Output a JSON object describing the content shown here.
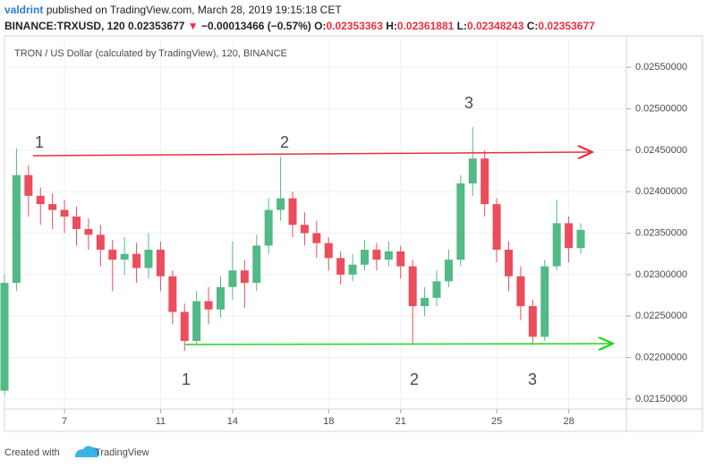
{
  "header": {
    "user": "valdrint",
    "published": "published on TradingView.com, March 28, 2019 19:15:18 CET",
    "symbol": "BINANCE:TRXUSD, 120",
    "last": "0.02353677",
    "arrow": "▼",
    "change": "−0.00013466 (−0.57%)",
    "o_label": "O:",
    "o": "0.02353363",
    "h_label": "H:",
    "h": "0.02361881",
    "l_label": "L:",
    "l": "0.02348243",
    "c_label": "C:",
    "c": "0.02353677"
  },
  "chart_data": {
    "type": "candlestick",
    "title": "TRON / US Dollar (calculated by TradingView), 120, BINANCE",
    "up_color": "#53b987",
    "down_color": "#eb4d5c",
    "grid": true,
    "xlim": [
      4.5,
      30.4
    ],
    "xticks": [
      7,
      11,
      14,
      18,
      21,
      25,
      28
    ],
    "ylim": [
      0.02138,
      0.02588
    ],
    "yticks": [
      {
        "value": 0.0215,
        "label": "0.02150000"
      },
      {
        "value": 0.022,
        "label": "0.02200000"
      },
      {
        "value": 0.0225,
        "label": "0.02250000"
      },
      {
        "value": 0.023,
        "label": "0.02300000"
      },
      {
        "value": 0.0235,
        "label": "0.02350000"
      },
      {
        "value": 0.024,
        "label": "0.02400000"
      },
      {
        "value": 0.0245,
        "label": "0.02450000"
      },
      {
        "value": 0.025,
        "label": "0.02500000"
      },
      {
        "value": 0.0255,
        "label": "0.02550000"
      }
    ],
    "x": [
      4.5,
      5,
      5.5,
      6,
      6.5,
      7,
      7.5,
      8,
      8.5,
      9,
      9.5,
      10,
      10.5,
      11,
      11.5,
      12,
      12.5,
      13,
      13.5,
      14,
      14.5,
      15,
      15.5,
      16,
      16.5,
      17,
      17.5,
      18,
      18.5,
      19,
      19.5,
      20,
      20.5,
      21,
      21.5,
      22,
      22.5,
      23,
      23.5,
      24,
      24.5,
      25,
      25.5,
      26,
      26.5,
      27,
      27.5,
      28,
      28.5
    ],
    "open": [
      0.0216,
      0.0229,
      0.0242,
      0.02395,
      0.02385,
      0.02378,
      0.0237,
      0.02355,
      0.02348,
      0.0233,
      0.02318,
      0.02325,
      0.02308,
      0.0233,
      0.02298,
      0.02255,
      0.0222,
      0.02268,
      0.02258,
      0.02285,
      0.02305,
      0.0229,
      0.02335,
      0.02378,
      0.02392,
      0.0236,
      0.0235,
      0.02338,
      0.0232,
      0.023,
      0.02312,
      0.0233,
      0.02318,
      0.02328,
      0.0231,
      0.02262,
      0.02272,
      0.02292,
      0.02318,
      0.0241,
      0.0244,
      0.02385,
      0.0233,
      0.02298,
      0.02262,
      0.02225,
      0.0231,
      0.02362,
      0.02332
    ],
    "high": [
      0.023,
      0.02452,
      0.02432,
      0.02405,
      0.02398,
      0.0239,
      0.02382,
      0.02368,
      0.0236,
      0.02342,
      0.02345,
      0.02338,
      0.0235,
      0.0234,
      0.02305,
      0.02265,
      0.0228,
      0.02285,
      0.02298,
      0.0234,
      0.02318,
      0.02348,
      0.02392,
      0.02442,
      0.024,
      0.02375,
      0.02365,
      0.02345,
      0.02328,
      0.02325,
      0.02342,
      0.02338,
      0.0234,
      0.02335,
      0.02318,
      0.02285,
      0.02305,
      0.0233,
      0.0242,
      0.02478,
      0.0245,
      0.02392,
      0.0234,
      0.0231,
      0.0227,
      0.02318,
      0.0239,
      0.0237,
      0.02362
    ],
    "low": [
      0.02155,
      0.0228,
      0.0237,
      0.0236,
      0.02355,
      0.0235,
      0.02335,
      0.0233,
      0.0231,
      0.0228,
      0.023,
      0.0229,
      0.02295,
      0.0228,
      0.0224,
      0.02208,
      0.02215,
      0.0224,
      0.02248,
      0.0227,
      0.0226,
      0.0228,
      0.02325,
      0.02365,
      0.02345,
      0.02335,
      0.0232,
      0.02305,
      0.02288,
      0.02292,
      0.02305,
      0.02305,
      0.0231,
      0.02295,
      0.02215,
      0.0225,
      0.02262,
      0.02285,
      0.0231,
      0.02395,
      0.0237,
      0.02315,
      0.0228,
      0.02245,
      0.02215,
      0.0222,
      0.02305,
      0.02315,
      0.02325
    ],
    "close": [
      0.0229,
      0.0242,
      0.02395,
      0.02385,
      0.02378,
      0.0237,
      0.02355,
      0.02348,
      0.0233,
      0.02318,
      0.02325,
      0.02308,
      0.0233,
      0.02298,
      0.02255,
      0.0222,
      0.02268,
      0.02258,
      0.02285,
      0.02305,
      0.0229,
      0.02335,
      0.02378,
      0.02392,
      0.0236,
      0.0235,
      0.02338,
      0.0232,
      0.023,
      0.02312,
      0.0233,
      0.02318,
      0.02328,
      0.0231,
      0.02262,
      0.02272,
      0.02292,
      0.02318,
      0.0241,
      0.0244,
      0.02385,
      0.0233,
      0.02298,
      0.02262,
      0.02225,
      0.0231,
      0.02362,
      0.02332,
      0.02354
    ],
    "annotations": [
      "1",
      "2",
      "3",
      "1",
      "2",
      "3"
    ]
  },
  "footer": {
    "created": "Created with",
    "brand": "TradingView"
  }
}
